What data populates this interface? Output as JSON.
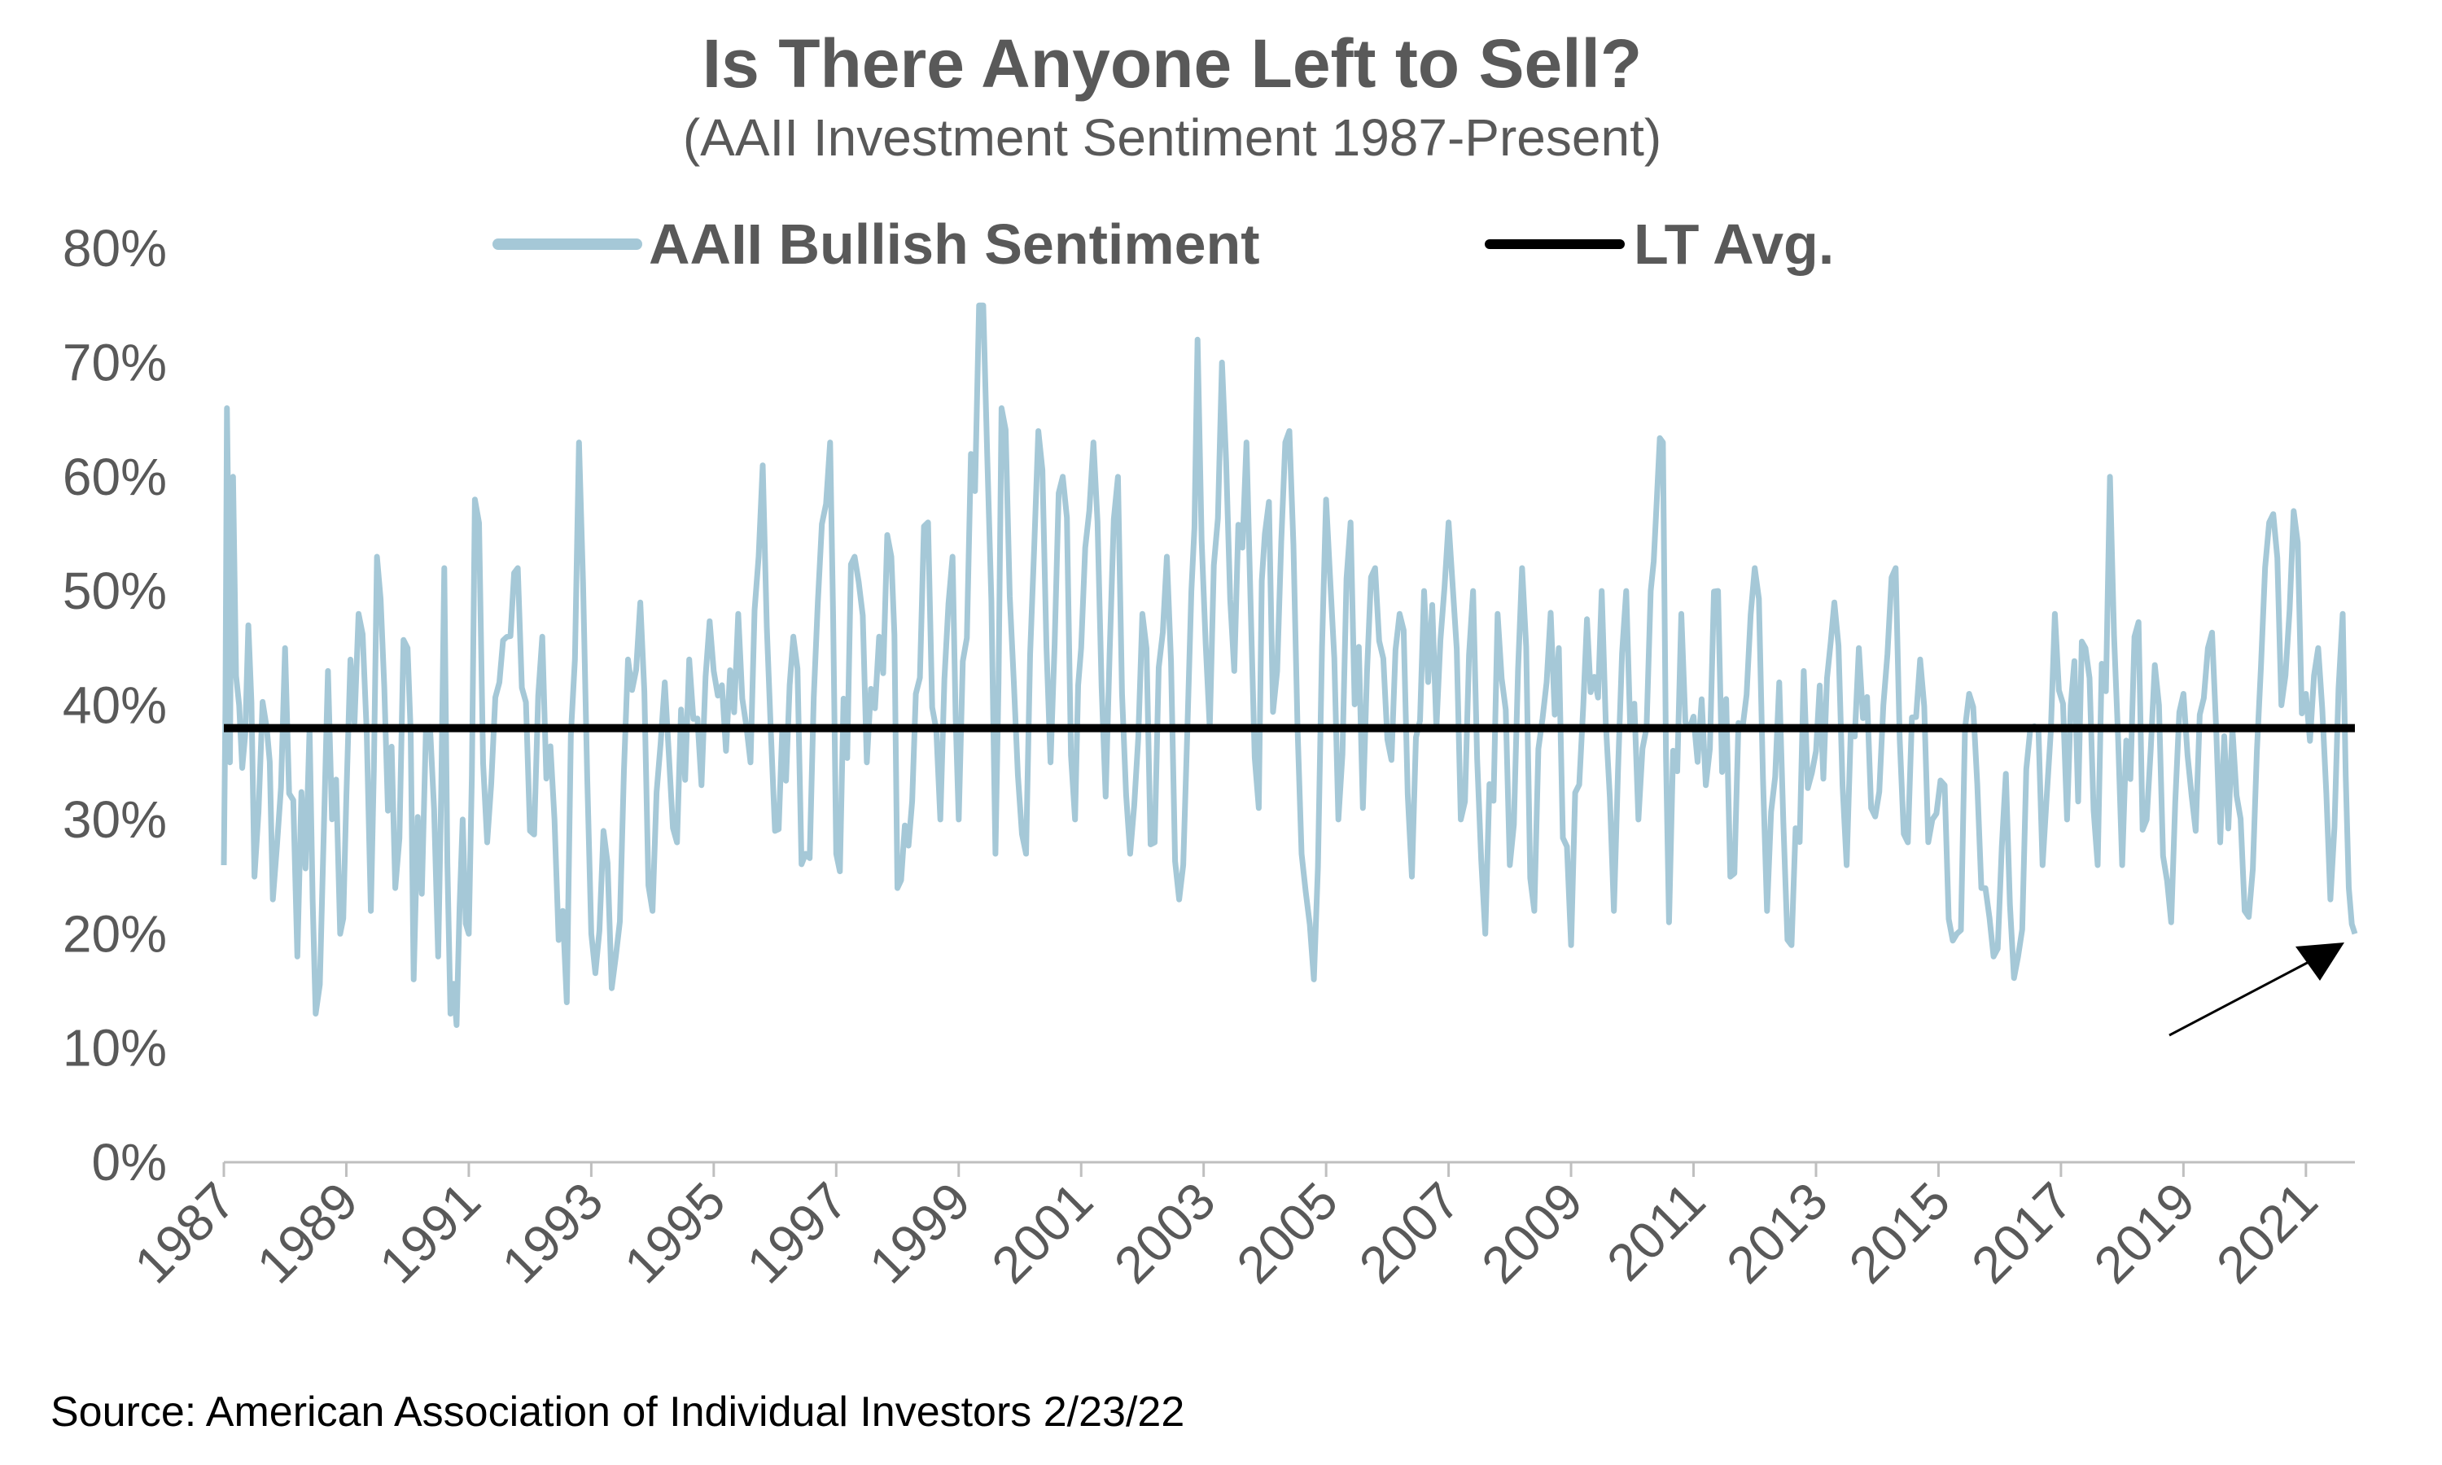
{
  "chart_data": {
    "type": "line",
    "title": "Is There Anyone Left to Sell?",
    "subtitle": "(AAII Investment Sentiment 1987-Present)",
    "source": "Source: American Association of Individual Investors 2/23/22",
    "xlim": [
      1987,
      2021.8
    ],
    "ylim": [
      0,
      80
    ],
    "y_ticks": [
      0,
      10,
      20,
      30,
      40,
      50,
      60,
      70,
      80
    ],
    "y_tick_labels": [
      "0%",
      "10%",
      "20%",
      "30%",
      "40%",
      "50%",
      "60%",
      "70%",
      "80%"
    ],
    "x_ticks": [
      1987,
      1989,
      1991,
      1993,
      1995,
      1997,
      1999,
      2001,
      2003,
      2005,
      2007,
      2009,
      2011,
      2013,
      2015,
      2017,
      2019,
      2021
    ],
    "x_tick_labels": [
      "1987",
      "1989",
      "1991",
      "1993",
      "1995",
      "1997",
      "1999",
      "2001",
      "2003",
      "2005",
      "2007",
      "2009",
      "2011",
      "2013",
      "2015",
      "2017",
      "2019",
      "2021"
    ],
    "series": [
      {
        "name": "AAII Bullish Sentiment",
        "color": "#A5C8D7",
        "anchors": [
          [
            1987.0,
            26
          ],
          [
            1987.05,
            66
          ],
          [
            1987.1,
            35
          ],
          [
            1987.15,
            60
          ],
          [
            1987.25,
            40
          ],
          [
            1987.4,
            47
          ],
          [
            1987.5,
            25
          ],
          [
            1987.7,
            38
          ],
          [
            1987.8,
            23
          ],
          [
            1988.0,
            45
          ],
          [
            1988.2,
            18
          ],
          [
            1988.4,
            38
          ],
          [
            1988.5,
            13
          ],
          [
            1988.7,
            43
          ],
          [
            1988.9,
            20
          ],
          [
            1989.0,
            32
          ],
          [
            1989.2,
            48
          ],
          [
            1989.4,
            22
          ],
          [
            1989.5,
            53
          ],
          [
            1989.8,
            24
          ],
          [
            1990.0,
            45
          ],
          [
            1990.1,
            16
          ],
          [
            1990.3,
            38
          ],
          [
            1990.5,
            18
          ],
          [
            1990.6,
            52
          ],
          [
            1990.7,
            13
          ],
          [
            1990.8,
            12
          ],
          [
            1990.9,
            30
          ],
          [
            1991.0,
            20
          ],
          [
            1991.1,
            58
          ],
          [
            1991.3,
            28
          ],
          [
            1991.5,
            42
          ],
          [
            1991.8,
            52
          ],
          [
            1992.0,
            29
          ],
          [
            1992.2,
            46
          ],
          [
            1992.4,
            30
          ],
          [
            1992.6,
            14
          ],
          [
            1992.8,
            63
          ],
          [
            1993.0,
            20
          ],
          [
            1993.2,
            29
          ],
          [
            1993.4,
            18
          ],
          [
            1993.6,
            44
          ],
          [
            1993.8,
            49
          ],
          [
            1994.0,
            22
          ],
          [
            1994.2,
            42
          ],
          [
            1994.4,
            28
          ],
          [
            1994.6,
            44
          ],
          [
            1994.8,
            33
          ],
          [
            1995.0,
            43
          ],
          [
            1995.2,
            36
          ],
          [
            1995.4,
            48
          ],
          [
            1995.6,
            35
          ],
          [
            1995.8,
            61
          ],
          [
            1996.0,
            29
          ],
          [
            1996.3,
            46
          ],
          [
            1996.5,
            27
          ],
          [
            1996.7,
            49
          ],
          [
            1996.9,
            63
          ],
          [
            1997.0,
            27
          ],
          [
            1997.3,
            53
          ],
          [
            1997.5,
            35
          ],
          [
            1997.7,
            46
          ],
          [
            1997.9,
            53
          ],
          [
            1998.0,
            24
          ],
          [
            1998.3,
            41
          ],
          [
            1998.5,
            56
          ],
          [
            1998.7,
            30
          ],
          [
            1998.9,
            53
          ],
          [
            1999.0,
            30
          ],
          [
            1999.2,
            62
          ],
          [
            1999.4,
            75
          ],
          [
            1999.6,
            27
          ],
          [
            1999.7,
            66
          ],
          [
            1999.9,
            42
          ],
          [
            2000.1,
            27
          ],
          [
            2000.3,
            64
          ],
          [
            2000.5,
            35
          ],
          [
            2000.7,
            60
          ],
          [
            2000.9,
            30
          ],
          [
            2001.0,
            45
          ],
          [
            2001.2,
            63
          ],
          [
            2001.4,
            32
          ],
          [
            2001.6,
            60
          ],
          [
            2001.8,
            27
          ],
          [
            2002.0,
            48
          ],
          [
            2002.2,
            28
          ],
          [
            2002.4,
            53
          ],
          [
            2002.6,
            23
          ],
          [
            2002.8,
            50
          ],
          [
            2002.9,
            72
          ],
          [
            2003.1,
            38
          ],
          [
            2003.3,
            70
          ],
          [
            2003.5,
            43
          ],
          [
            2003.7,
            63
          ],
          [
            2003.9,
            31
          ],
          [
            2004.0,
            55
          ],
          [
            2004.2,
            43
          ],
          [
            2004.4,
            64
          ],
          [
            2004.6,
            27
          ],
          [
            2004.8,
            16
          ],
          [
            2005.0,
            58
          ],
          [
            2005.2,
            30
          ],
          [
            2005.4,
            56
          ],
          [
            2005.6,
            31
          ],
          [
            2005.8,
            52
          ],
          [
            2006.0,
            37
          ],
          [
            2006.2,
            48
          ],
          [
            2006.4,
            25
          ],
          [
            2006.6,
            50
          ],
          [
            2006.8,
            38
          ],
          [
            2007.0,
            56
          ],
          [
            2007.2,
            30
          ],
          [
            2007.4,
            50
          ],
          [
            2007.6,
            20
          ],
          [
            2007.8,
            48
          ],
          [
            2008.0,
            26
          ],
          [
            2008.2,
            52
          ],
          [
            2008.4,
            22
          ],
          [
            2008.6,
            42
          ],
          [
            2008.8,
            45
          ],
          [
            2009.0,
            19
          ],
          [
            2009.2,
            40
          ],
          [
            2009.5,
            50
          ],
          [
            2009.7,
            22
          ],
          [
            2009.9,
            50
          ],
          [
            2010.1,
            30
          ],
          [
            2010.3,
            50
          ],
          [
            2010.4,
            58
          ],
          [
            2010.5,
            63
          ],
          [
            2010.6,
            21
          ],
          [
            2010.8,
            48
          ],
          [
            2011.0,
            39
          ],
          [
            2011.2,
            33
          ],
          [
            2011.4,
            50
          ],
          [
            2011.6,
            25
          ],
          [
            2011.8,
            38
          ],
          [
            2012.0,
            52
          ],
          [
            2012.2,
            22
          ],
          [
            2012.4,
            42
          ],
          [
            2012.6,
            19
          ],
          [
            2012.8,
            43
          ],
          [
            2013.0,
            36
          ],
          [
            2013.3,
            49
          ],
          [
            2013.5,
            26
          ],
          [
            2013.7,
            45
          ],
          [
            2013.9,
            31
          ],
          [
            2014.1,
            40
          ],
          [
            2014.3,
            52
          ],
          [
            2014.5,
            28
          ],
          [
            2014.7,
            44
          ],
          [
            2014.9,
            30
          ],
          [
            2015.1,
            33
          ],
          [
            2015.3,
            20
          ],
          [
            2015.5,
            41
          ],
          [
            2015.7,
            24
          ],
          [
            2015.9,
            18
          ],
          [
            2016.1,
            34
          ],
          [
            2016.3,
            18
          ],
          [
            2016.5,
            38
          ],
          [
            2016.7,
            26
          ],
          [
            2016.9,
            48
          ],
          [
            2017.1,
            30
          ],
          [
            2017.4,
            45
          ],
          [
            2017.6,
            26
          ],
          [
            2017.8,
            60
          ],
          [
            2018.0,
            26
          ],
          [
            2018.2,
            46
          ],
          [
            2018.4,
            30
          ],
          [
            2018.6,
            40
          ],
          [
            2018.8,
            21
          ],
          [
            2019.0,
            41
          ],
          [
            2019.2,
            29
          ],
          [
            2019.4,
            45
          ],
          [
            2019.6,
            28
          ],
          [
            2019.8,
            38
          ],
          [
            2020.0,
            22
          ],
          [
            2020.2,
            36
          ],
          [
            2020.4,
            56
          ],
          [
            2020.6,
            40
          ],
          [
            2020.8,
            57
          ],
          [
            2021.0,
            41
          ],
          [
            2021.2,
            45
          ],
          [
            2021.4,
            23
          ],
          [
            2021.6,
            48
          ],
          [
            2021.7,
            24
          ],
          [
            2021.8,
            20
          ]
        ]
      },
      {
        "name": "LT Avg.",
        "color": "#000000",
        "value": 38
      }
    ],
    "legend": [
      "AAII Bullish Sentiment",
      "LT Avg."
    ],
    "legend_position": "top",
    "annotation": "arrow pointing to latest low reading",
    "grid": false
  }
}
